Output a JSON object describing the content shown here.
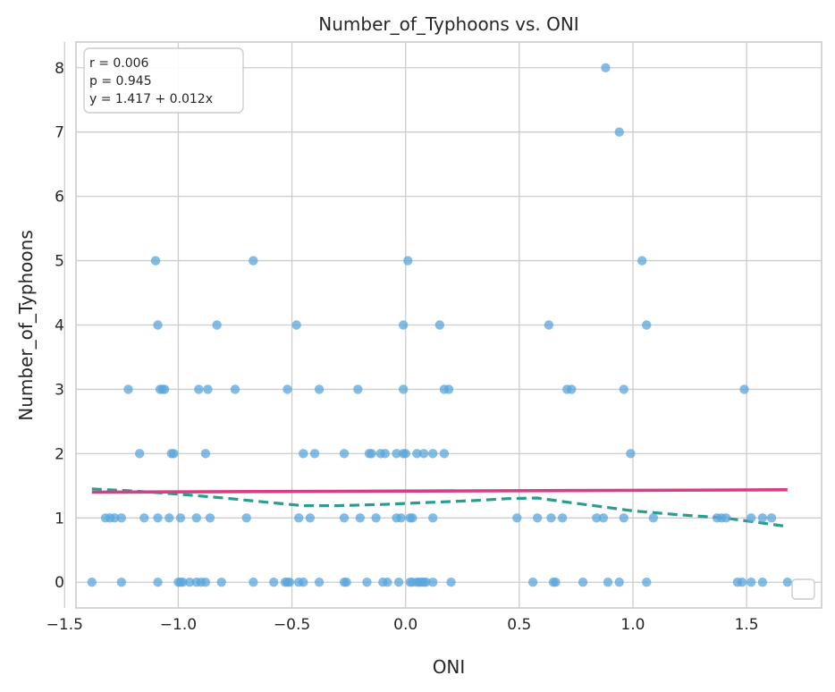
{
  "chart_data": {
    "type": "scatter",
    "title": "Number_of_Typhoons vs. ONI",
    "xlabel": "ONI",
    "ylabel": "Number_of_Typhoons",
    "xlim": [
      -1.45,
      1.83
    ],
    "ylim": [
      -0.4,
      8.4
    ],
    "xticks": [
      -1.5,
      -1.0,
      -0.5,
      0.0,
      0.5,
      1.0,
      1.5
    ],
    "xtick_labels": [
      "−1.5",
      "−1.0",
      "−0.5",
      "0.0",
      "0.5",
      "1.0",
      "1.5"
    ],
    "yticks": [
      0,
      1,
      2,
      3,
      4,
      5,
      6,
      7,
      8
    ],
    "ytick_labels": [
      "0",
      "1",
      "2",
      "3",
      "4",
      "5",
      "6",
      "7",
      "8"
    ],
    "grid": true,
    "legend": "lower-right",
    "colors": {
      "points": "#5aa5dc",
      "regression": "#d63f84",
      "smooth": "#2a9d8f",
      "grid": "#cccccc",
      "spine": "#cccccc"
    },
    "stats": [
      "r = 0.006",
      "p = 0.945",
      "y = 1.417 + 0.012x"
    ],
    "regression": {
      "intercept": 1.417,
      "slope": 0.012,
      "x_range": [
        -1.38,
        1.68
      ]
    },
    "smooth": {
      "x": [
        -1.38,
        -1.2,
        -1.0,
        -0.8,
        -0.6,
        -0.45,
        -0.3,
        -0.1,
        0.1,
        0.3,
        0.45,
        0.58,
        0.7,
        0.85,
        1.0,
        1.2,
        1.4,
        1.55,
        1.67
      ],
      "y": [
        1.45,
        1.42,
        1.37,
        1.31,
        1.24,
        1.19,
        1.19,
        1.21,
        1.24,
        1.27,
        1.3,
        1.31,
        1.25,
        1.18,
        1.11,
        1.05,
        1.0,
        0.93,
        0.87
      ]
    },
    "points": [
      {
        "x": 0.88,
        "y": 8
      },
      {
        "x": 0.94,
        "y": 7
      },
      {
        "x": -1.1,
        "y": 5
      },
      {
        "x": -0.67,
        "y": 5
      },
      {
        "x": 0.01,
        "y": 5
      },
      {
        "x": 1.04,
        "y": 5
      },
      {
        "x": -1.09,
        "y": 4
      },
      {
        "x": -0.83,
        "y": 4
      },
      {
        "x": -0.48,
        "y": 4
      },
      {
        "x": -0.01,
        "y": 4
      },
      {
        "x": 0.15,
        "y": 4
      },
      {
        "x": 0.63,
        "y": 4
      },
      {
        "x": 1.06,
        "y": 4
      },
      {
        "x": -1.22,
        "y": 3
      },
      {
        "x": -1.08,
        "y": 3
      },
      {
        "x": -1.07,
        "y": 3
      },
      {
        "x": -1.06,
        "y": 3
      },
      {
        "x": -0.91,
        "y": 3
      },
      {
        "x": -0.87,
        "y": 3
      },
      {
        "x": -0.75,
        "y": 3
      },
      {
        "x": -0.52,
        "y": 3
      },
      {
        "x": -0.38,
        "y": 3
      },
      {
        "x": -0.21,
        "y": 3
      },
      {
        "x": -0.01,
        "y": 3
      },
      {
        "x": 0.17,
        "y": 3
      },
      {
        "x": 0.19,
        "y": 3
      },
      {
        "x": 0.71,
        "y": 3
      },
      {
        "x": 0.73,
        "y": 3
      },
      {
        "x": 0.96,
        "y": 3
      },
      {
        "x": 1.49,
        "y": 3
      },
      {
        "x": -1.17,
        "y": 2
      },
      {
        "x": -1.03,
        "y": 2
      },
      {
        "x": -1.02,
        "y": 2
      },
      {
        "x": -0.88,
        "y": 2
      },
      {
        "x": -0.45,
        "y": 2
      },
      {
        "x": -0.4,
        "y": 2
      },
      {
        "x": -0.27,
        "y": 2
      },
      {
        "x": -0.16,
        "y": 2
      },
      {
        "x": -0.15,
        "y": 2
      },
      {
        "x": -0.11,
        "y": 2
      },
      {
        "x": -0.09,
        "y": 2
      },
      {
        "x": -0.04,
        "y": 2
      },
      {
        "x": -0.01,
        "y": 2
      },
      {
        "x": 0.0,
        "y": 2
      },
      {
        "x": 0.05,
        "y": 2
      },
      {
        "x": 0.08,
        "y": 2
      },
      {
        "x": 0.12,
        "y": 2
      },
      {
        "x": 0.17,
        "y": 2
      },
      {
        "x": 0.99,
        "y": 2
      },
      {
        "x": -1.32,
        "y": 1
      },
      {
        "x": -1.3,
        "y": 1
      },
      {
        "x": -1.28,
        "y": 1
      },
      {
        "x": -1.25,
        "y": 1
      },
      {
        "x": -1.15,
        "y": 1
      },
      {
        "x": -1.09,
        "y": 1
      },
      {
        "x": -1.04,
        "y": 1
      },
      {
        "x": -0.99,
        "y": 1
      },
      {
        "x": -0.92,
        "y": 1
      },
      {
        "x": -0.86,
        "y": 1
      },
      {
        "x": -0.7,
        "y": 1
      },
      {
        "x": -0.47,
        "y": 1
      },
      {
        "x": -0.42,
        "y": 1
      },
      {
        "x": -0.27,
        "y": 1
      },
      {
        "x": -0.2,
        "y": 1
      },
      {
        "x": -0.13,
        "y": 1
      },
      {
        "x": -0.04,
        "y": 1
      },
      {
        "x": -0.02,
        "y": 1
      },
      {
        "x": 0.02,
        "y": 1
      },
      {
        "x": 0.03,
        "y": 1
      },
      {
        "x": 0.12,
        "y": 1
      },
      {
        "x": 0.49,
        "y": 1
      },
      {
        "x": 0.58,
        "y": 1
      },
      {
        "x": 0.64,
        "y": 1
      },
      {
        "x": 0.69,
        "y": 1
      },
      {
        "x": 0.84,
        "y": 1
      },
      {
        "x": 0.87,
        "y": 1
      },
      {
        "x": 0.96,
        "y": 1
      },
      {
        "x": 1.09,
        "y": 1
      },
      {
        "x": 1.37,
        "y": 1
      },
      {
        "x": 1.39,
        "y": 1
      },
      {
        "x": 1.41,
        "y": 1
      },
      {
        "x": 1.52,
        "y": 1
      },
      {
        "x": 1.57,
        "y": 1
      },
      {
        "x": 1.61,
        "y": 1
      },
      {
        "x": -1.38,
        "y": 0
      },
      {
        "x": -1.25,
        "y": 0
      },
      {
        "x": -1.09,
        "y": 0
      },
      {
        "x": -1.0,
        "y": 0
      },
      {
        "x": -0.99,
        "y": 0
      },
      {
        "x": -0.98,
        "y": 0
      },
      {
        "x": -0.95,
        "y": 0
      },
      {
        "x": -0.92,
        "y": 0
      },
      {
        "x": -0.9,
        "y": 0
      },
      {
        "x": -0.88,
        "y": 0
      },
      {
        "x": -0.81,
        "y": 0
      },
      {
        "x": -0.67,
        "y": 0
      },
      {
        "x": -0.58,
        "y": 0
      },
      {
        "x": -0.53,
        "y": 0
      },
      {
        "x": -0.52,
        "y": 0
      },
      {
        "x": -0.51,
        "y": 0
      },
      {
        "x": -0.47,
        "y": 0
      },
      {
        "x": -0.45,
        "y": 0
      },
      {
        "x": -0.38,
        "y": 0
      },
      {
        "x": -0.27,
        "y": 0
      },
      {
        "x": -0.26,
        "y": 0
      },
      {
        "x": -0.17,
        "y": 0
      },
      {
        "x": -0.1,
        "y": 0
      },
      {
        "x": -0.08,
        "y": 0
      },
      {
        "x": -0.03,
        "y": 0
      },
      {
        "x": 0.02,
        "y": 0
      },
      {
        "x": 0.03,
        "y": 0
      },
      {
        "x": 0.05,
        "y": 0
      },
      {
        "x": 0.06,
        "y": 0
      },
      {
        "x": 0.07,
        "y": 0
      },
      {
        "x": 0.08,
        "y": 0
      },
      {
        "x": 0.09,
        "y": 0
      },
      {
        "x": 0.12,
        "y": 0
      },
      {
        "x": 0.2,
        "y": 0
      },
      {
        "x": 0.56,
        "y": 0
      },
      {
        "x": 0.65,
        "y": 0
      },
      {
        "x": 0.66,
        "y": 0
      },
      {
        "x": 0.78,
        "y": 0
      },
      {
        "x": 0.89,
        "y": 0
      },
      {
        "x": 0.94,
        "y": 0
      },
      {
        "x": 1.06,
        "y": 0
      },
      {
        "x": 1.46,
        "y": 0
      },
      {
        "x": 1.48,
        "y": 0
      },
      {
        "x": 1.52,
        "y": 0
      },
      {
        "x": 1.57,
        "y": 0
      },
      {
        "x": 1.68,
        "y": 0
      }
    ]
  }
}
